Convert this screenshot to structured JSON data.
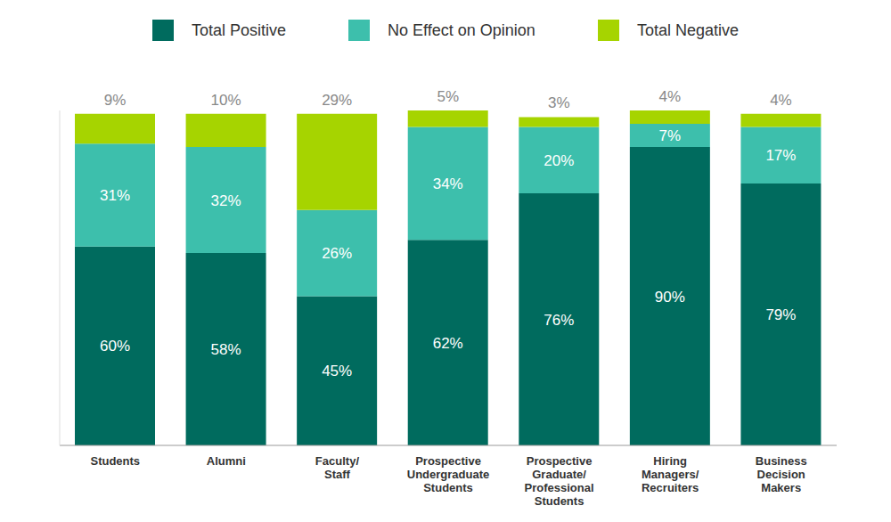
{
  "chart_data": {
    "type": "bar",
    "stacked": true,
    "data_labels": true,
    "grid": false,
    "legend": "top",
    "tick_labels": "x",
    "categories": [
      "Students",
      "Alumni",
      "Faculty/Staff",
      "Prospective Undergraduate Students",
      "Prospective Graduate/Professional Students",
      "Hiring Managers/Recruiters",
      "Business Decision Makers"
    ],
    "ylim": [
      0,
      101
    ],
    "series": [
      {
        "name": "Total Positive",
        "color": "#006b5e",
        "values": [
          60,
          58,
          45,
          62,
          76,
          90,
          79
        ],
        "value_labels": [
          "60%",
          "58%",
          "45%",
          "62%",
          "76%",
          "90%",
          "79%"
        ]
      },
      {
        "name": "No Effect on Opinion",
        "color": "#3dbfac",
        "values": [
          31,
          32,
          26,
          34,
          20,
          7,
          17
        ],
        "value_labels": [
          "31%",
          "32%",
          "26%",
          "34%",
          "20%",
          "7%",
          "17%"
        ]
      },
      {
        "name": "Total Negative",
        "color": "#a6d400",
        "values": [
          9,
          10,
          29,
          5,
          3,
          4,
          4
        ],
        "value_labels": [
          "9%",
          "10%",
          "29%",
          "5%",
          "3%",
          "4%",
          "4%"
        ]
      }
    ]
  }
}
